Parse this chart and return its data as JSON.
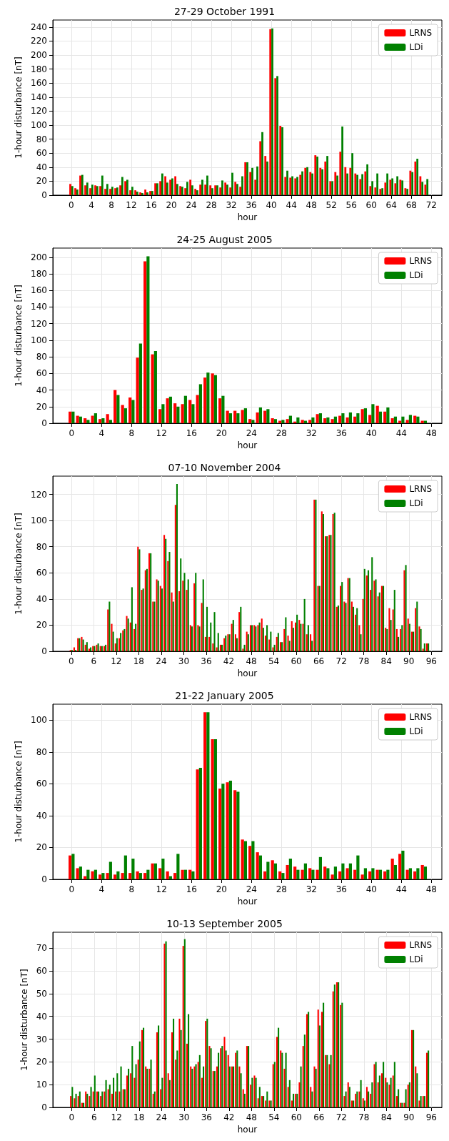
{
  "chart_data": [
    {
      "type": "bar",
      "title": "27-29 October 1991",
      "xlabel": "hour",
      "ylabel": "1-hour disturbance [nT]",
      "grid": true,
      "legend": "top right",
      "xlim": [
        -3.7,
        74.1
      ],
      "ylim": [
        0,
        250
      ],
      "xticks": [
        0,
        4,
        8,
        12,
        16,
        20,
        24,
        28,
        32,
        36,
        40,
        44,
        48,
        52,
        56,
        60,
        64,
        68,
        72
      ],
      "yticks": [
        0,
        20,
        40,
        60,
        80,
        100,
        120,
        140,
        160,
        180,
        200,
        220,
        240
      ],
      "x": [
        0,
        1,
        2,
        3,
        4,
        5,
        6,
        7,
        8,
        9,
        10,
        11,
        12,
        13,
        14,
        15,
        16,
        17,
        18,
        19,
        20,
        21,
        22,
        23,
        24,
        25,
        26,
        27,
        28,
        29,
        30,
        31,
        32,
        33,
        34,
        35,
        36,
        37,
        38,
        39,
        40,
        41,
        42,
        43,
        44,
        45,
        46,
        47,
        48,
        49,
        50,
        51,
        52,
        53,
        54,
        55,
        56,
        57,
        58,
        59,
        60,
        61,
        62,
        63,
        64,
        65,
        66,
        67,
        68,
        69,
        70,
        71
      ],
      "series": [
        {
          "name": "LRNS",
          "color": "#ff0000",
          "values": [
            16,
            10,
            28,
            14,
            10,
            14,
            13,
            9,
            9,
            10,
            14,
            20,
            7,
            7,
            4,
            8,
            6,
            17,
            20,
            27,
            22,
            27,
            13,
            10,
            22,
            9,
            15,
            15,
            14,
            14,
            11,
            18,
            11,
            19,
            12,
            47,
            33,
            22,
            77,
            56,
            237,
            167,
            99,
            26,
            25,
            24,
            29,
            39,
            33,
            57,
            39,
            48,
            20,
            33,
            62,
            40,
            39,
            31,
            23,
            34,
            13,
            11,
            9,
            18,
            22,
            17,
            22,
            10,
            35,
            48,
            27,
            15
          ]
        },
        {
          "name": "LDi",
          "color": "#008000",
          "values": [
            13,
            8,
            29,
            18,
            15,
            13,
            28,
            16,
            12,
            11,
            26,
            22,
            12,
            5,
            3,
            4,
            6,
            17,
            31,
            18,
            24,
            16,
            12,
            19,
            14,
            7,
            22,
            28,
            10,
            14,
            21,
            15,
            32,
            16,
            27,
            47,
            39,
            41,
            90,
            48,
            238,
            170,
            97,
            35,
            27,
            26,
            34,
            40,
            31,
            55,
            37,
            56,
            20,
            28,
            98,
            31,
            60,
            29,
            30,
            44,
            20,
            31,
            10,
            31,
            24,
            27,
            21,
            9,
            33,
            52,
            19,
            23
          ]
        }
      ]
    },
    {
      "type": "bar",
      "title": "24-25 August 2005",
      "xlabel": "hour",
      "ylabel": "1-hour disturbance [nT]",
      "grid": true,
      "legend": "top right",
      "xlim": [
        -2.5,
        49.4
      ],
      "ylim": [
        0,
        211
      ],
      "xticks": [
        0,
        4,
        8,
        12,
        16,
        20,
        24,
        28,
        32,
        36,
        40,
        44,
        48
      ],
      "yticks": [
        0,
        20,
        40,
        60,
        80,
        100,
        120,
        140,
        160,
        180,
        200
      ],
      "x": [
        0,
        1,
        2,
        3,
        4,
        5,
        6,
        7,
        8,
        9,
        10,
        11,
        12,
        13,
        14,
        15,
        16,
        17,
        18,
        19,
        20,
        21,
        22,
        23,
        24,
        25,
        26,
        27,
        28,
        29,
        30,
        31,
        32,
        33,
        34,
        35,
        36,
        37,
        38,
        39,
        40,
        41,
        42,
        43,
        44,
        45,
        46,
        47
      ],
      "series": [
        {
          "name": "LRNS",
          "color": "#ff0000",
          "values": [
            14,
            9,
            6,
            9,
            5,
            11,
            40,
            22,
            31,
            79,
            195,
            83,
            17,
            30,
            24,
            23,
            28,
            34,
            55,
            60,
            30,
            15,
            15,
            16,
            5,
            13,
            15,
            6,
            3,
            5,
            2,
            4,
            4,
            11,
            6,
            5,
            9,
            7,
            8,
            17,
            10,
            21,
            14,
            6,
            3,
            4,
            9,
            3
          ]
        },
        {
          "name": "LDi",
          "color": "#008000",
          "values": [
            14,
            8,
            4,
            12,
            6,
            4,
            34,
            18,
            28,
            96,
            201,
            87,
            23,
            32,
            20,
            33,
            23,
            47,
            61,
            58,
            33,
            12,
            12,
            18,
            4,
            19,
            17,
            5,
            4,
            9,
            7,
            3,
            7,
            12,
            7,
            8,
            12,
            13,
            12,
            18,
            23,
            14,
            19,
            8,
            8,
            10,
            8,
            3
          ]
        }
      ]
    },
    {
      "type": "bar",
      "title": "07-10 November 2004",
      "xlabel": "hour",
      "ylabel": "1-hour disturbance [nT]",
      "grid": true,
      "legend": "top right",
      "xlim": [
        -4.9,
        98.8
      ],
      "ylim": [
        0,
        134
      ],
      "xticks": [
        0,
        6,
        12,
        18,
        24,
        30,
        36,
        42,
        48,
        54,
        60,
        66,
        72,
        78,
        84,
        90,
        96
      ],
      "yticks": [
        0,
        20,
        40,
        60,
        80,
        100,
        120
      ],
      "x": [
        0,
        1,
        2,
        3,
        4,
        5,
        6,
        7,
        8,
        9,
        10,
        11,
        12,
        13,
        14,
        15,
        16,
        17,
        18,
        19,
        20,
        21,
        22,
        23,
        24,
        25,
        26,
        27,
        28,
        29,
        30,
        31,
        32,
        33,
        34,
        35,
        36,
        37,
        38,
        39,
        40,
        41,
        42,
        43,
        44,
        45,
        46,
        47,
        48,
        49,
        50,
        51,
        52,
        53,
        54,
        55,
        56,
        57,
        58,
        59,
        60,
        61,
        62,
        63,
        64,
        65,
        66,
        67,
        68,
        69,
        70,
        71,
        72,
        73,
        74,
        75,
        76,
        77,
        78,
        79,
        80,
        81,
        82,
        83,
        84,
        85,
        86,
        87,
        88,
        89,
        90,
        91,
        92,
        93,
        94,
        95
      ],
      "series": [
        {
          "name": "LRNS",
          "color": "#ff0000",
          "values": [
            1,
            3,
            10,
            11,
            5,
            2,
            4,
            5,
            4,
            4,
            32,
            21,
            6,
            10,
            16,
            27,
            22,
            17,
            80,
            47,
            62,
            75,
            38,
            55,
            50,
            89,
            69,
            45,
            112,
            46,
            54,
            47,
            20,
            52,
            20,
            37,
            11,
            11,
            6,
            3,
            5,
            10,
            13,
            21,
            13,
            30,
            2,
            15,
            20,
            20,
            20,
            25,
            12,
            9,
            3,
            11,
            7,
            17,
            12,
            23,
            22,
            24,
            21,
            13,
            13,
            116,
            50,
            107,
            88,
            89,
            105,
            34,
            50,
            38,
            56,
            38,
            28,
            20,
            40,
            58,
            47,
            54,
            42,
            50,
            18,
            33,
            32,
            17,
            17,
            62,
            25,
            15,
            33,
            19,
            2,
            6
          ]
        },
        {
          "name": "LDi",
          "color": "#008000",
          "values": [
            1,
            1,
            10,
            9,
            7,
            3,
            4,
            6,
            4,
            5,
            38,
            15,
            10,
            14,
            17,
            25,
            49,
            21,
            78,
            48,
            63,
            75,
            38,
            54,
            48,
            86,
            76,
            38,
            128,
            71,
            60,
            55,
            19,
            60,
            19,
            55,
            34,
            22,
            30,
            14,
            5,
            12,
            13,
            24,
            10,
            34,
            5,
            13,
            20,
            19,
            22,
            18,
            20,
            15,
            5,
            14,
            7,
            26,
            8,
            18,
            28,
            21,
            40,
            20,
            8,
            116,
            50,
            105,
            88,
            89,
            106,
            35,
            53,
            37,
            56,
            34,
            33,
            13,
            63,
            62,
            72,
            55,
            45,
            50,
            17,
            24,
            47,
            11,
            20,
            66,
            21,
            15,
            38,
            17,
            6,
            6
          ]
        }
      ]
    },
    {
      "type": "bar",
      "title": "21-22 January 2005",
      "xlabel": "hour",
      "ylabel": "1-hour disturbance [nT]",
      "grid": true,
      "legend": "top right",
      "xlim": [
        -2.5,
        49.4
      ],
      "ylim": [
        0,
        110
      ],
      "xticks": [
        0,
        4,
        8,
        12,
        16,
        20,
        24,
        28,
        32,
        36,
        40,
        44,
        48
      ],
      "yticks": [
        0,
        20,
        40,
        60,
        80,
        100
      ],
      "x": [
        0,
        1,
        2,
        3,
        4,
        5,
        6,
        7,
        8,
        9,
        10,
        11,
        12,
        13,
        14,
        15,
        16,
        17,
        18,
        19,
        20,
        21,
        22,
        23,
        24,
        25,
        26,
        27,
        28,
        29,
        30,
        31,
        32,
        33,
        34,
        35,
        36,
        37,
        38,
        39,
        40,
        41,
        42,
        43,
        44,
        45,
        46,
        47
      ],
      "series": [
        {
          "name": "LRNS",
          "color": "#ff0000",
          "values": [
            15,
            7,
            2,
            5,
            3,
            4,
            3,
            4,
            4,
            5,
            4,
            10,
            7,
            5,
            4,
            6,
            6,
            69,
            105,
            88,
            57,
            61,
            56,
            25,
            21,
            17,
            5,
            12,
            5,
            9,
            8,
            6,
            7,
            6,
            8,
            3,
            5,
            7,
            6,
            3,
            5,
            6,
            5,
            13,
            16,
            6,
            5,
            9
          ]
        },
        {
          "name": "LDi",
          "color": "#008000",
          "values": [
            16,
            8,
            6,
            6,
            4,
            11,
            5,
            15,
            13,
            4,
            6,
            10,
            13,
            2,
            16,
            6,
            5,
            70,
            105,
            88,
            60,
            62,
            55,
            24,
            24,
            15,
            11,
            10,
            4,
            13,
            6,
            10,
            6,
            14,
            7,
            8,
            10,
            10,
            15,
            7,
            7,
            6,
            6,
            9,
            18,
            7,
            7,
            8
          ]
        }
      ]
    },
    {
      "type": "bar",
      "title": "10-13 September 2005",
      "xlabel": "hour",
      "ylabel": "1-hour disturbance [nT]",
      "grid": true,
      "legend": "top right",
      "xlim": [
        -5,
        98.8
      ],
      "ylim": [
        0,
        77
      ],
      "xticks": [
        0,
        6,
        12,
        18,
        24,
        30,
        36,
        42,
        48,
        54,
        60,
        66,
        72,
        78,
        84,
        90,
        96
      ],
      "yticks": [
        0,
        10,
        20,
        30,
        40,
        50,
        60,
        70
      ],
      "x": [
        0,
        1,
        2,
        3,
        4,
        5,
        6,
        7,
        8,
        9,
        10,
        11,
        12,
        13,
        14,
        15,
        16,
        17,
        18,
        19,
        20,
        21,
        22,
        23,
        24,
        25,
        26,
        27,
        28,
        29,
        30,
        31,
        32,
        33,
        34,
        35,
        36,
        37,
        38,
        39,
        40,
        41,
        42,
        43,
        44,
        45,
        46,
        47,
        48,
        49,
        50,
        51,
        52,
        53,
        54,
        55,
        56,
        57,
        58,
        59,
        60,
        61,
        62,
        63,
        64,
        65,
        66,
        67,
        68,
        69,
        70,
        71,
        72,
        73,
        74,
        75,
        76,
        77,
        78,
        79,
        80,
        81,
        82,
        83,
        84,
        85,
        86,
        87,
        88,
        89,
        90,
        91,
        92,
        93,
        94,
        95
      ],
      "series": [
        {
          "name": "LRNS",
          "color": "#ff0000",
          "values": [
            5,
            4,
            5,
            2,
            7,
            5,
            7,
            7,
            5,
            7,
            8,
            6,
            7,
            7,
            8,
            14,
            15,
            13,
            21,
            34,
            18,
            17,
            6,
            33,
            8,
            72,
            15,
            33,
            21,
            39,
            71,
            28,
            18,
            18,
            20,
            13,
            38,
            27,
            16,
            18,
            26,
            31,
            23,
            18,
            24,
            18,
            8,
            27,
            10,
            14,
            4,
            5,
            3,
            3,
            19,
            31,
            25,
            17,
            9,
            3,
            6,
            11,
            27,
            41,
            9,
            18,
            43,
            42,
            23,
            19,
            51,
            55,
            45,
            5,
            11,
            3,
            6,
            7,
            4,
            9,
            6,
            19,
            11,
            15,
            13,
            10,
            14,
            5,
            2,
            2,
            10,
            34,
            18,
            3,
            5,
            24
          ]
        },
        {
          "name": "LDi",
          "color": "#008000",
          "values": [
            9,
            6,
            7,
            2,
            6,
            9,
            14,
            7,
            7,
            12,
            10,
            13,
            15,
            18,
            8,
            17,
            27,
            19,
            29,
            35,
            17,
            21,
            7,
            36,
            13,
            73,
            12,
            39,
            25,
            34,
            74,
            41,
            17,
            19,
            23,
            18,
            39,
            26,
            16,
            24,
            27,
            25,
            18,
            18,
            25,
            15,
            6,
            27,
            13,
            13,
            9,
            5,
            7,
            3,
            20,
            35,
            24,
            24,
            12,
            6,
            6,
            18,
            32,
            42,
            7,
            17,
            36,
            46,
            23,
            23,
            54,
            55,
            46,
            7,
            9,
            3,
            7,
            12,
            3,
            7,
            11,
            20,
            14,
            20,
            11,
            13,
            20,
            8,
            2,
            8,
            11,
            34,
            15,
            5,
            5,
            25
          ]
        }
      ]
    }
  ]
}
